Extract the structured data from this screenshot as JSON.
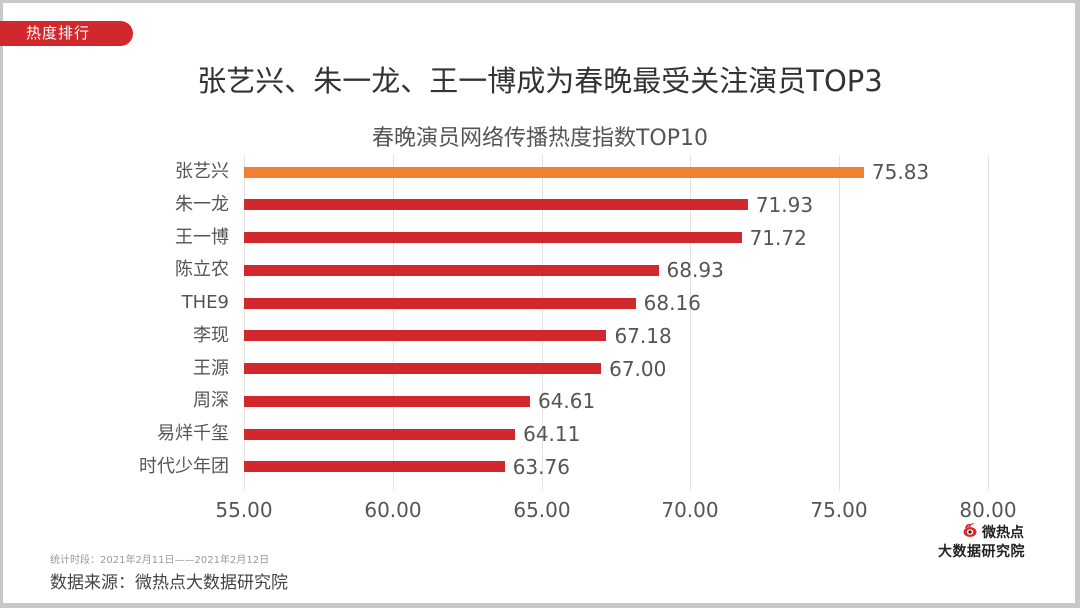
{
  "tag": {
    "label": "热度排行"
  },
  "headline": "张艺兴、朱一龙、王一博成为春晚最受关注演员TOP3",
  "footer": {
    "period": "统计时段：2021年2月11日——2021年2月12日",
    "source": "数据来源：微热点大数据研究院"
  },
  "logo": {
    "icon": "weibo-eye-icon",
    "line1": "微热点",
    "line2": "大数据研究院"
  },
  "colors": {
    "highlight": "#ef8131",
    "bar": "#d0282c",
    "tag": "#d0282c",
    "grid": "#e2e2e2"
  },
  "chart_data": {
    "type": "bar",
    "orientation": "horizontal",
    "title": "春晚演员网络传播热度指数TOP10",
    "xlabel": "",
    "ylabel": "",
    "categories": [
      "张艺兴",
      "朱一龙",
      "王一博",
      "陈立农",
      "THE9",
      "李现",
      "王源",
      "周深",
      "易烊千玺",
      "时代少年团"
    ],
    "values": [
      75.83,
      71.93,
      71.72,
      68.93,
      68.16,
      67.18,
      67.0,
      64.61,
      64.11,
      63.76
    ],
    "value_labels": [
      "75.83",
      "71.93",
      "71.72",
      "68.93",
      "68.16",
      "67.18",
      "67.00",
      "64.61",
      "64.11",
      "63.76"
    ],
    "xlim": [
      55,
      80
    ],
    "xticks": [
      "55.00",
      "60.00",
      "65.00",
      "70.00",
      "75.00",
      "80.00"
    ],
    "grid": true,
    "legend": "none",
    "highlighted_index": 0
  }
}
